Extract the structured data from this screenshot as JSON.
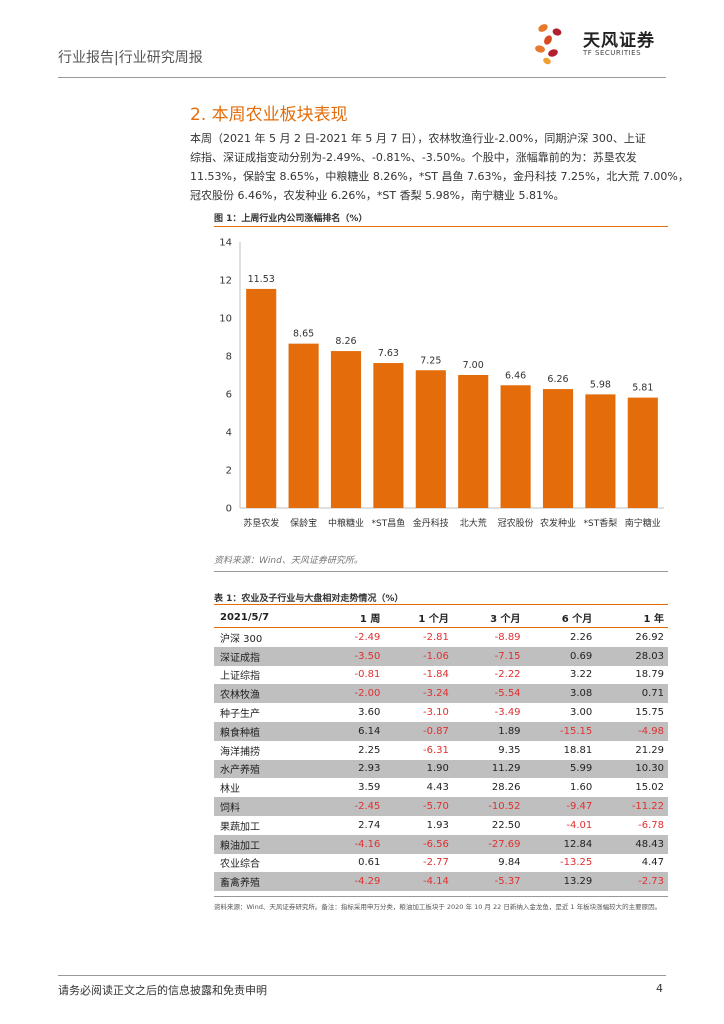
{
  "header": {
    "title": "行业报告|行业研究周报",
    "logo_cn": "天风证券",
    "logo_en": "TF SECURITIES"
  },
  "section": {
    "title": "2. 本周农业板块表现",
    "paragraph": [
      "本周（2021 年 5 月 2 日-2021 年 5 月 7 日），农林牧渔行业-2.00%，同期沪深 300、上证",
      "综指、深证成指变动分别为-2.49%、-0.81%、-3.50%。个股中，涨幅靠前的为：苏垦农发",
      "11.53%，保龄宝 8.65%，中粮糖业 8.26%，*ST 昌鱼 7.63%，金丹科技 7.25%，北大荒 7.00%，",
      "冠农股份 6.46%，农发种业 6.26%，*ST 香梨 5.98%，南宁糖业 5.81%。"
    ]
  },
  "figure": {
    "caption": "图 1：上周行业内公司涨幅排名（%）",
    "source": "资料来源：Wind、天风证券研究所。"
  },
  "chart_data": {
    "type": "bar",
    "title": "",
    "xlabel": "",
    "ylabel": "",
    "ylim": [
      0,
      14
    ],
    "yticks": [
      0,
      2,
      4,
      6,
      8,
      10,
      12,
      14
    ],
    "categories": [
      "苏垦农发",
      "保龄宝",
      "中粮糖业",
      "*ST昌鱼",
      "金丹科技",
      "北大荒",
      "冠农股份",
      "农发种业",
      "*ST香梨",
      "南宁糖业"
    ],
    "values": [
      11.53,
      8.65,
      8.26,
      7.63,
      7.25,
      7.0,
      6.46,
      6.26,
      5.98,
      5.81
    ],
    "labels": [
      "11.53",
      "8.65",
      "8.26",
      "7.63",
      "7.25",
      "7.00",
      "6.46",
      "6.26",
      "5.98",
      "5.81"
    ],
    "bar_color": "#e46c0a",
    "grid": false,
    "legend": "none"
  },
  "table": {
    "caption": "表 1：农业及子行业与大盘相对走势情况（%）",
    "headers": [
      "2021/5/7",
      "1 周",
      "1 个月",
      "3 个月",
      "6 个月",
      "1 年"
    ],
    "rows": [
      {
        "name": "沪深 300",
        "values": [
          "-2.49",
          "-2.81",
          "-8.89",
          "2.26",
          "26.92"
        ],
        "shaded": false
      },
      {
        "name": "深证成指",
        "values": [
          "-3.50",
          "-1.06",
          "-7.15",
          "0.69",
          "28.03"
        ],
        "shaded": true
      },
      {
        "name": "上证综指",
        "values": [
          "-0.81",
          "-1.84",
          "-2.22",
          "3.22",
          "18.79"
        ],
        "shaded": false
      },
      {
        "name": "农林牧渔",
        "values": [
          "-2.00",
          "-3.24",
          "-5.54",
          "3.08",
          "0.71"
        ],
        "shaded": true
      },
      {
        "name": "种子生产",
        "values": [
          "3.60",
          "-3.10",
          "-3.49",
          "3.00",
          "15.75"
        ],
        "shaded": false
      },
      {
        "name": "粮食种植",
        "values": [
          "6.14",
          "-0.87",
          "1.89",
          "-15.15",
          "-4.98"
        ],
        "shaded": true
      },
      {
        "name": "海洋捕捞",
        "values": [
          "2.25",
          "-6.31",
          "9.35",
          "18.81",
          "21.29"
        ],
        "shaded": false
      },
      {
        "name": "水产养殖",
        "values": [
          "2.93",
          "1.90",
          "11.29",
          "5.99",
          "10.30"
        ],
        "shaded": true
      },
      {
        "name": "林业",
        "values": [
          "3.59",
          "4.43",
          "28.26",
          "1.60",
          "15.02"
        ],
        "shaded": false
      },
      {
        "name": "饲料",
        "values": [
          "-2.45",
          "-5.70",
          "-10.52",
          "-9.47",
          "-11.22"
        ],
        "shaded": true
      },
      {
        "name": "果蔬加工",
        "values": [
          "2.74",
          "1.93",
          "22.50",
          "-4.01",
          "-6.78"
        ],
        "shaded": false
      },
      {
        "name": "粮油加工",
        "values": [
          "-4.16",
          "-6.56",
          "-27.69",
          "12.84",
          "48.43"
        ],
        "shaded": true
      },
      {
        "name": "农业综合",
        "values": [
          "0.61",
          "-2.77",
          "9.84",
          "-13.25",
          "4.47"
        ],
        "shaded": false
      },
      {
        "name": "畜禽养殖",
        "values": [
          "-4.29",
          "-4.14",
          "-5.37",
          "13.29",
          "-2.73"
        ],
        "shaded": true
      }
    ],
    "negative_color": "#e03030",
    "source": "资料来源：Wind、天风证券研究所。备注：指标采用申万分类，粮油加工板块于 2020 年 10 月 22 日新纳入金龙鱼，是近 1 年板块涨幅较大的主要原因。"
  },
  "footer": {
    "disclaimer": "请务必阅读正文之后的信息披露和免责申明",
    "page": "4"
  }
}
